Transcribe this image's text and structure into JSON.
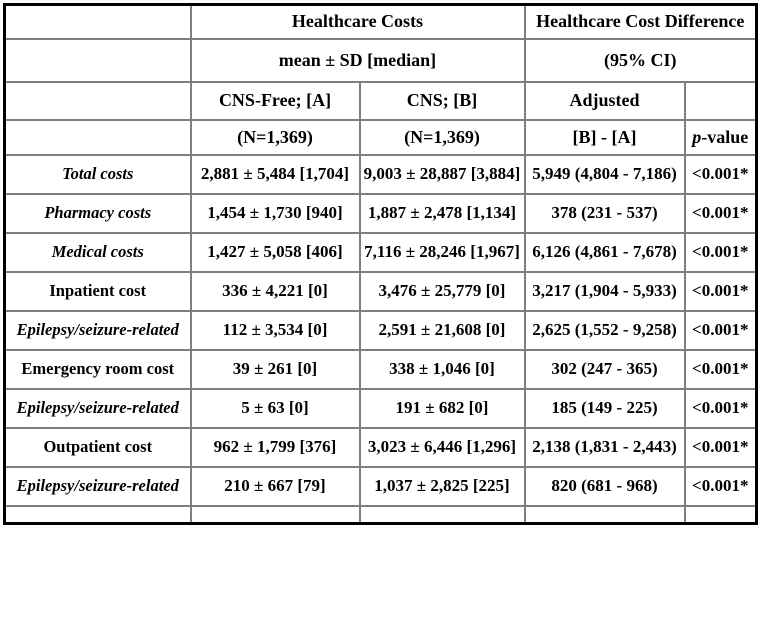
{
  "table": {
    "header": {
      "corner": "",
      "healthcare_costs": "Healthcare Costs",
      "cost_difference": "Healthcare Cost Difference",
      "mean_sd": "mean ± SD [median]",
      "ci": "(95% CI)",
      "cns_free": "CNS-Free; [A]",
      "cns": "CNS; [B]",
      "adjusted": "Adjusted",
      "adjusted_blank": "",
      "n_a": "(N=1,369)",
      "n_b": "(N=1,369)",
      "b_minus_a": "[B] - [A]",
      "p_italic": "p",
      "p_rest": "-value"
    },
    "rows": [
      {
        "label": "Total costs",
        "emphasis": "italic",
        "cns_free": "2,881 ± 5,484 [1,704]",
        "cns": "9,003 ± 28,887 [3,884]",
        "adjusted": "5,949 (4,804 - 7,186)",
        "p": "<0.001*"
      },
      {
        "label": "Pharmacy costs",
        "emphasis": "italic",
        "cns_free": "1,454 ± 1,730 [940]",
        "cns": "1,887 ± 2,478 [1,134]",
        "adjusted": "378 (231 - 537)",
        "p": "<0.001*"
      },
      {
        "label": "Medical costs",
        "emphasis": "italic",
        "cns_free": "1,427 ± 5,058 [406]",
        "cns": "7,116 ± 28,246 [1,967]",
        "adjusted": "6,126 (4,861 - 7,678)",
        "p": "<0.001*"
      },
      {
        "label": "Inpatient cost",
        "emphasis": "normal",
        "cns_free": "336 ± 4,221 [0]",
        "cns": "3,476 ± 25,779 [0]",
        "adjusted": "3,217 (1,904 - 5,933)",
        "p": "<0.001*"
      },
      {
        "label": "Epilepsy/seizure-related",
        "emphasis": "italic",
        "cns_free": "112 ± 3,534 [0]",
        "cns": "2,591 ± 21,608 [0]",
        "adjusted": "2,625 (1,552 - 9,258)",
        "p": "<0.001*"
      },
      {
        "label": "Emergency room cost",
        "emphasis": "normal",
        "cns_free": "39 ± 261 [0]",
        "cns": "338 ± 1,046 [0]",
        "adjusted": "302 (247 - 365)",
        "p": "<0.001*"
      },
      {
        "label": "Epilepsy/seizure-related",
        "emphasis": "italic",
        "cns_free": "5 ± 63 [0]",
        "cns": "191 ± 682 [0]",
        "adjusted": "185 (149 - 225)",
        "p": "<0.001*"
      },
      {
        "label": "Outpatient cost",
        "emphasis": "normal",
        "cns_free": "962 ± 1,799 [376]",
        "cns": "3,023 ± 6,446 [1,296]",
        "adjusted": "2,138 (1,831 - 2,443)",
        "p": "<0.001*"
      },
      {
        "label": "Epilepsy/seizure-related",
        "emphasis": "italic",
        "cns_free": "210 ± 667 [79]",
        "cns": "1,037 ± 2,825 [225]",
        "adjusted": "820 (681 - 968)",
        "p": "<0.001*"
      },
      {
        "label": "",
        "emphasis": "normal",
        "cns_free": "",
        "cns": "",
        "adjusted": "",
        "p": ""
      }
    ],
    "colors": {
      "outer_border": "#000000",
      "inner_border": "#7e7e7e",
      "text": "#000000",
      "background": "#ffffff"
    }
  }
}
